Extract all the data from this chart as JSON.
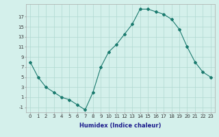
{
  "x": [
    0,
    1,
    2,
    3,
    4,
    5,
    6,
    7,
    8,
    9,
    10,
    11,
    12,
    13,
    14,
    15,
    16,
    17,
    18,
    19,
    20,
    21,
    22,
    23
  ],
  "y": [
    8,
    5,
    3,
    2,
    1,
    0.5,
    -0.5,
    -1.5,
    2,
    7,
    10,
    11.5,
    13.5,
    15.5,
    18.5,
    18.5,
    18,
    17.5,
    16.5,
    14.5,
    11,
    8,
    6,
    5
  ],
  "xlabel": "Humidex (Indice chaleur)",
  "xlim": [
    -0.5,
    23.5
  ],
  "ylim": [
    -2,
    19.5
  ],
  "yticks": [
    -1,
    1,
    3,
    5,
    7,
    9,
    11,
    13,
    15,
    17
  ],
  "xticks": [
    0,
    1,
    2,
    3,
    4,
    5,
    6,
    7,
    8,
    9,
    10,
    11,
    12,
    13,
    14,
    15,
    16,
    17,
    18,
    19,
    20,
    21,
    22,
    23
  ],
  "line_color": "#1a7a6e",
  "marker": "D",
  "marker_size": 2,
  "bg_color": "#d4f0eb",
  "grid_color": "#b0d8d0",
  "label_fontsize": 6,
  "tick_fontsize": 5
}
